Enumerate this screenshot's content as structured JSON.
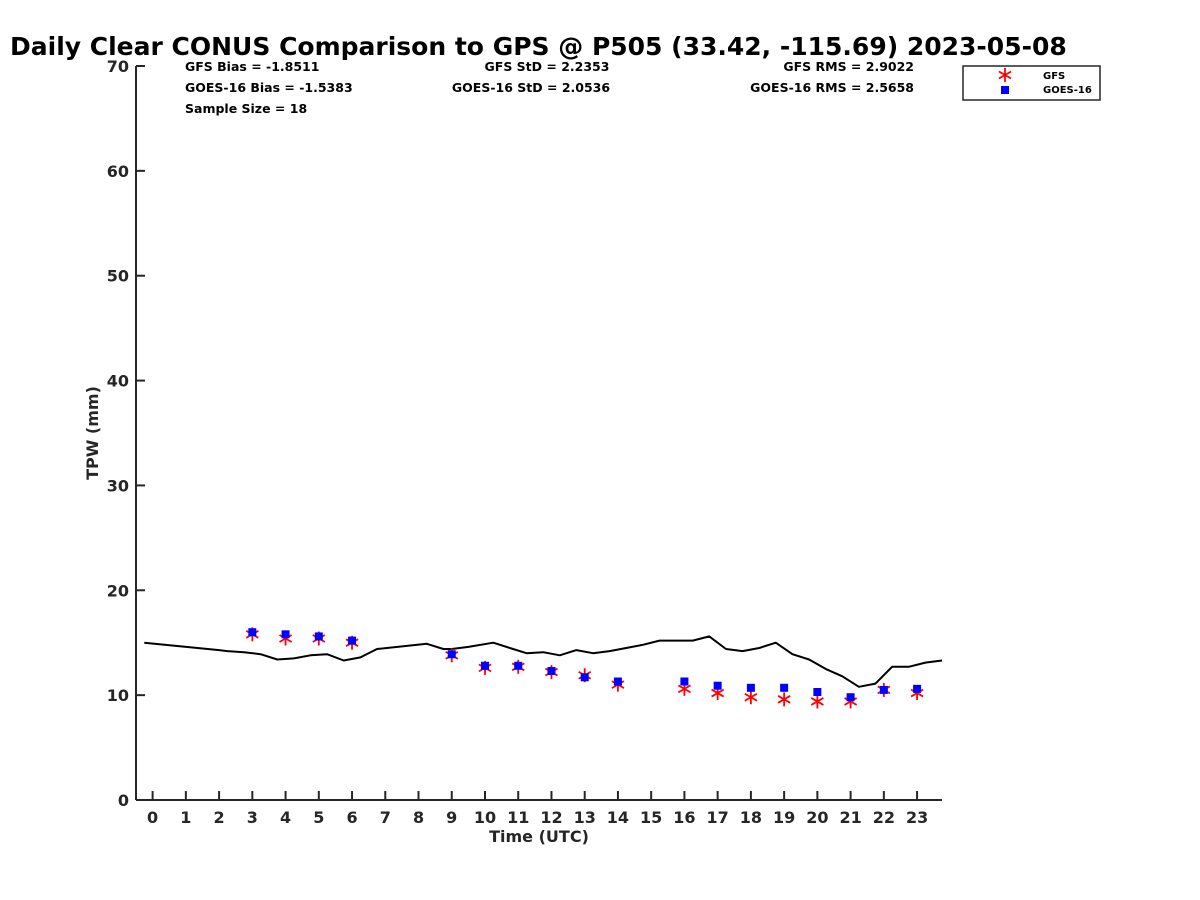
{
  "title": "Daily Clear CONUS Comparison to GPS @ P505 (33.42, -115.69) 2023-05-08",
  "stats": {
    "gfs_bias": "GFS Bias = -1.8511",
    "gfs_std": "GFS StD = 2.2353",
    "gfs_rms": "GFS RMS = 2.9022",
    "goes_bias": "GOES-16 Bias = -1.5383",
    "goes_std": "GOES-16 StD = 2.0536",
    "goes_rms": "GOES-16 RMS = 2.5658",
    "sample_size": "Sample Size = 18"
  },
  "legend": {
    "gfs_label": "GFS",
    "goes_label": "GOES-16"
  },
  "colors": {
    "gps_line": "#000000",
    "gfs": "#ff0000",
    "goes": "#0000ff",
    "axis": "#262626"
  },
  "chart_data": {
    "type": "line",
    "title": "Daily Clear CONUS Comparison to GPS @ P505 (33.42, -115.69) 2023-05-08",
    "xlabel": "Time (UTC)",
    "ylabel": "TPW (mm)",
    "xlim": [
      -0.5,
      23.75
    ],
    "ylim": [
      0,
      70
    ],
    "x_ticks": [
      "0",
      "1",
      "2",
      "3",
      "4",
      "5",
      "6",
      "7",
      "8",
      "9",
      "10",
      "11",
      "12",
      "13",
      "14",
      "15",
      "16",
      "17",
      "18",
      "19",
      "20",
      "21",
      "22",
      "23"
    ],
    "y_ticks": [
      "0",
      "10",
      "20",
      "30",
      "40",
      "50",
      "60",
      "70"
    ],
    "grid": false,
    "legend_position": "top-right",
    "series": [
      {
        "marker": "line",
        "x": [
          -0.25,
          2.0,
          2.25,
          2.75,
          3.25,
          3.75,
          4.25,
          4.75,
          5.25,
          5.75,
          6.25,
          6.75,
          8.25,
          8.75,
          9.0,
          9.5,
          10.25,
          10.75,
          11.25,
          11.75,
          12.25,
          12.75,
          13.25,
          13.75,
          14.25,
          14.75,
          15.25,
          15.75,
          16.25,
          16.75,
          17.25,
          17.75,
          18.25,
          18.75,
          19.25,
          19.75,
          20.25,
          20.75,
          21.25,
          21.75,
          22.25,
          22.75,
          23.25,
          23.75
        ],
        "y": [
          15.0,
          14.3,
          14.2,
          14.1,
          13.9,
          13.4,
          13.5,
          13.8,
          13.9,
          13.3,
          13.6,
          14.4,
          14.9,
          14.4,
          14.4,
          14.6,
          15.0,
          14.5,
          14.0,
          14.1,
          13.8,
          14.3,
          14.0,
          14.2,
          14.5,
          14.8,
          15.2,
          15.2,
          15.2,
          15.6,
          14.4,
          14.2,
          14.5,
          15.0,
          13.9,
          13.4,
          12.5,
          11.8,
          10.8,
          11.1,
          12.7,
          12.7,
          13.1,
          13.3
        ]
      },
      {
        "name": "GFS",
        "marker": "asterisk",
        "x": [
          3,
          4,
          5,
          6,
          9,
          10,
          11,
          12,
          13,
          14,
          16,
          17,
          18,
          19,
          20,
          21,
          22,
          23
        ],
        "y": [
          15.8,
          15.4,
          15.4,
          15.0,
          13.8,
          12.6,
          12.7,
          12.2,
          11.9,
          11.0,
          10.6,
          10.2,
          9.8,
          9.6,
          9.4,
          9.4,
          10.5,
          10.2
        ]
      },
      {
        "name": "GOES-16",
        "marker": "square",
        "x": [
          3,
          4,
          5,
          6,
          9,
          10,
          11,
          12,
          13,
          14,
          16,
          17,
          18,
          19,
          20,
          21,
          22,
          23
        ],
        "y": [
          16.0,
          15.8,
          15.6,
          15.2,
          13.9,
          12.8,
          12.8,
          12.3,
          11.7,
          11.3,
          11.3,
          10.9,
          10.7,
          10.7,
          10.3,
          9.8,
          10.5,
          10.6
        ]
      }
    ]
  }
}
